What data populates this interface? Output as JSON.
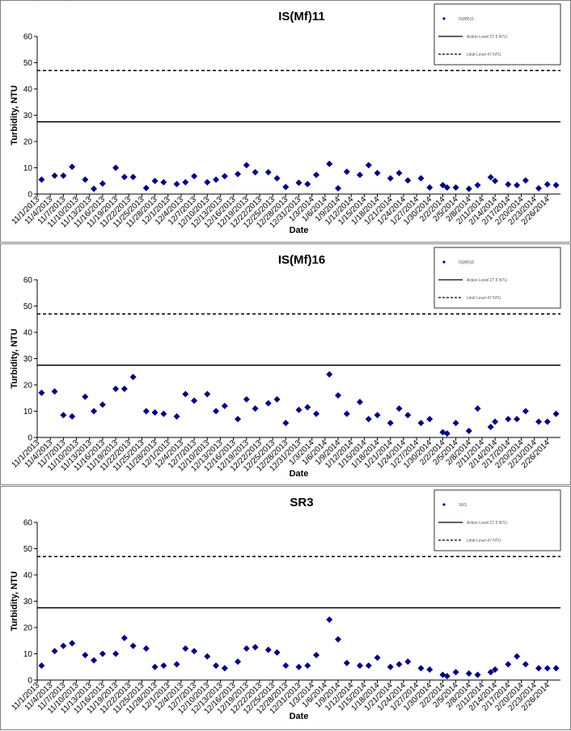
{
  "chart_data": [
    {
      "type": "scatter",
      "title": "IS(Mf)11",
      "x_label": "Date",
      "y_label": "Turbidity, NTU",
      "xlim": [
        "11/1/2013",
        "3/1/2014"
      ],
      "xticks": [
        "11/1/2013",
        "11/4/2013",
        "11/7/2013",
        "11/10/2013",
        "11/13/2013",
        "11/16/2013",
        "11/19/2013",
        "11/22/2013",
        "11/25/2013",
        "11/28/2013",
        "12/1/2013",
        "12/4/2013",
        "12/7/2013",
        "12/10/2013",
        "12/13/2013",
        "12/16/2013",
        "12/19/2013",
        "12/22/2013",
        "12/25/2013",
        "12/28/2013",
        "12/31/2013",
        "1/3/2014",
        "1/6/2014",
        "1/9/2014",
        "1/12/2014",
        "1/15/2014",
        "1/18/2014",
        "1/21/2014",
        "1/24/2014",
        "1/27/2014",
        "1/30/2014",
        "2/2/2014",
        "2/5/2014",
        "2/8/2014",
        "2/11/2014",
        "2/14/2014",
        "2/17/2014",
        "2/20/2014",
        "2/23/2014",
        "2/26/2014"
      ],
      "ylim": [
        0,
        60
      ],
      "yticks": [
        0,
        10,
        20,
        30,
        40,
        50,
        60
      ],
      "series": [
        {
          "name": "IS(Mf)11",
          "color": "#000080",
          "x": [
            "11/2/2013",
            "11/5/2013",
            "11/7/2013",
            "11/9/2013",
            "11/12/2013",
            "11/14/2013",
            "11/16/2013",
            "11/19/2013",
            "11/21/2013",
            "11/23/2013",
            "11/26/2013",
            "11/28/2013",
            "11/30/2013",
            "12/3/2013",
            "12/5/2013",
            "12/7/2013",
            "12/10/2013",
            "12/12/2013",
            "12/14/2013",
            "12/17/2013",
            "12/19/2013",
            "12/21/2013",
            "12/24/2013",
            "12/26/2013",
            "12/28/2013",
            "12/31/2013",
            "1/2/2014",
            "1/4/2014",
            "1/7/2014",
            "1/9/2014",
            "1/11/2014",
            "1/14/2014",
            "1/16/2014",
            "1/18/2014",
            "1/21/2014",
            "1/23/2014",
            "1/25/2014",
            "1/28/2014",
            "1/30/2014",
            "2/2/2014",
            "2/3/2014",
            "2/5/2014",
            "2/8/2014",
            "2/10/2014",
            "2/13/2014",
            "2/14/2014",
            "2/17/2014",
            "2/19/2014",
            "2/21/2014",
            "2/24/2014",
            "2/26/2014",
            "2/28/2014"
          ],
          "values": [
            5.5,
            7,
            7,
            10.4,
            5.5,
            2,
            4,
            10,
            6.5,
            6.5,
            2.3,
            5,
            4.5,
            3.8,
            4.5,
            6.8,
            4.5,
            5.5,
            6.8,
            7.6,
            11,
            8.3,
            8.3,
            6,
            2.7,
            4.3,
            3.8,
            7.3,
            11.5,
            2.2,
            8.5,
            7.3,
            11,
            8,
            6,
            8,
            5.2,
            6,
            2.5,
            3.4,
            2.5,
            2.5,
            2,
            3.4,
            6.4,
            5,
            3.7,
            3.4,
            5.2,
            2.2,
            3.7,
            3.4
          ]
        }
      ],
      "reference_lines": [
        {
          "name": "Action Level 27.5 NTU",
          "value": 27.5,
          "style": "solid",
          "color": "#000000"
        },
        {
          "name": "Limit Level 47 NTU",
          "value": 47,
          "style": "dashed",
          "color": "#000000"
        }
      ]
    },
    {
      "type": "scatter",
      "title": "IS(Mf)16",
      "x_label": "Date",
      "y_label": "Turbidity, NTU",
      "xlim": [
        "11/1/2013",
        "3/1/2014"
      ],
      "xticks": [
        "11/1/2013",
        "11/4/2013",
        "11/7/2013",
        "11/10/2013",
        "11/13/2013",
        "11/16/2013",
        "11/19/2013",
        "11/22/2013",
        "11/25/2013",
        "11/28/2013",
        "12/1/2013",
        "12/4/2013",
        "12/7/2013",
        "12/10/2013",
        "12/13/2013",
        "12/16/2013",
        "12/19/2013",
        "12/22/2013",
        "12/25/2013",
        "12/28/2013",
        "12/31/2013",
        "1/3/2014",
        "1/6/2014",
        "1/9/2014",
        "1/12/2014",
        "1/15/2014",
        "1/18/2014",
        "1/21/2014",
        "1/24/2014",
        "1/27/2014",
        "1/30/2014",
        "2/2/2014",
        "2/5/2014",
        "2/8/2014",
        "2/11/2014",
        "2/14/2014",
        "2/17/2014",
        "2/20/2014",
        "2/23/2014",
        "2/26/2014"
      ],
      "ylim": [
        0,
        60
      ],
      "yticks": [
        0,
        10,
        20,
        30,
        40,
        50,
        60
      ],
      "series": [
        {
          "name": "IS(Mf)16",
          "color": "#000080",
          "x": [
            "11/2/2013",
            "11/5/2013",
            "11/7/2013",
            "11/9/2013",
            "11/12/2013",
            "11/14/2013",
            "11/16/2013",
            "11/19/2013",
            "11/21/2013",
            "11/23/2013",
            "11/26/2013",
            "11/28/2013",
            "11/30/2013",
            "12/3/2013",
            "12/5/2013",
            "12/7/2013",
            "12/10/2013",
            "12/12/2013",
            "12/14/2013",
            "12/17/2013",
            "12/19/2013",
            "12/21/2013",
            "12/24/2013",
            "12/26/2013",
            "12/28/2013",
            "12/31/2013",
            "1/2/2014",
            "1/4/2014",
            "1/7/2014",
            "1/9/2014",
            "1/11/2014",
            "1/14/2014",
            "1/16/2014",
            "1/18/2014",
            "1/21/2014",
            "1/23/2014",
            "1/25/2014",
            "1/28/2014",
            "1/30/2014",
            "2/2/2014",
            "2/3/2014",
            "2/5/2014",
            "2/8/2014",
            "2/10/2014",
            "2/13/2014",
            "2/14/2014",
            "2/17/2014",
            "2/19/2014",
            "2/21/2014",
            "2/24/2014",
            "2/26/2014",
            "2/28/2014"
          ],
          "values": [
            17,
            17.5,
            8.5,
            8,
            15.5,
            10,
            12.5,
            18.5,
            18.5,
            23,
            10,
            9.5,
            9,
            8,
            16.5,
            14,
            16.5,
            10,
            12,
            7,
            14.5,
            11,
            13,
            14.5,
            5.5,
            10.5,
            11.5,
            9,
            24,
            16,
            9,
            13.5,
            7,
            8.5,
            5.5,
            11,
            8.5,
            5.5,
            7,
            2,
            1.5,
            5.5,
            2.5,
            11,
            4,
            6,
            7,
            7,
            10,
            6,
            6,
            9
          ]
        }
      ],
      "reference_lines": [
        {
          "name": "Action Level 27.5 NTU",
          "value": 27.5,
          "style": "solid",
          "color": "#000000"
        },
        {
          "name": "Limit Level 47 NTU",
          "value": 47,
          "style": "dashed",
          "color": "#000000"
        }
      ]
    },
    {
      "type": "scatter",
      "title": "SR3",
      "x_label": "Date",
      "y_label": "Turbidity, NTU",
      "xlim": [
        "11/1/2013",
        "3/1/2014"
      ],
      "xticks": [
        "11/1/2013",
        "11/4/2013",
        "11/7/2013",
        "11/10/2013",
        "11/13/2013",
        "11/16/2013",
        "11/19/2013",
        "11/22/2013",
        "11/25/2013",
        "11/28/2013",
        "12/1/2013",
        "12/4/2013",
        "12/7/2013",
        "12/10/2013",
        "12/13/2013",
        "12/16/2013",
        "12/19/2013",
        "12/22/2013",
        "12/25/2013",
        "12/28/2013",
        "12/31/2013",
        "1/3/2014",
        "1/6/2014",
        "1/9/2014",
        "1/12/2014",
        "1/15/2014",
        "1/18/2014",
        "1/21/2014",
        "1/24/2014",
        "1/27/2014",
        "1/30/2014",
        "2/2/2014",
        "2/5/2014",
        "2/8/2014",
        "2/11/2014",
        "2/14/2014",
        "2/17/2014",
        "2/20/2014",
        "2/23/2014",
        "2/26/2014"
      ],
      "ylim": [
        0,
        60
      ],
      "yticks": [
        0,
        10,
        20,
        30,
        40,
        50,
        60
      ],
      "series": [
        {
          "name": "SR3",
          "color": "#000080",
          "x": [
            "11/2/2013",
            "11/5/2013",
            "11/7/2013",
            "11/9/2013",
            "11/12/2013",
            "11/14/2013",
            "11/16/2013",
            "11/19/2013",
            "11/21/2013",
            "11/23/2013",
            "11/26/2013",
            "11/28/2013",
            "11/30/2013",
            "12/3/2013",
            "12/5/2013",
            "12/7/2013",
            "12/10/2013",
            "12/12/2013",
            "12/14/2013",
            "12/17/2013",
            "12/19/2013",
            "12/21/2013",
            "12/24/2013",
            "12/26/2013",
            "12/28/2013",
            "12/31/2013",
            "1/2/2014",
            "1/4/2014",
            "1/7/2014",
            "1/9/2014",
            "1/11/2014",
            "1/14/2014",
            "1/16/2014",
            "1/18/2014",
            "1/21/2014",
            "1/23/2014",
            "1/25/2014",
            "1/28/2014",
            "1/30/2014",
            "2/2/2014",
            "2/3/2014",
            "2/5/2014",
            "2/8/2014",
            "2/10/2014",
            "2/13/2014",
            "2/14/2014",
            "2/17/2014",
            "2/19/2014",
            "2/21/2014",
            "2/24/2014",
            "2/26/2014",
            "2/28/2014"
          ],
          "values": [
            5.5,
            11,
            13,
            14,
            9.5,
            7.5,
            10,
            10,
            16,
            13,
            12,
            5,
            5.5,
            6,
            12,
            11,
            9,
            5.5,
            4.5,
            7,
            12,
            12.5,
            11.5,
            10.5,
            5.5,
            5,
            5.5,
            9.5,
            23,
            15.5,
            6.5,
            5.5,
            5.5,
            8.5,
            5,
            6,
            7,
            4.5,
            4,
            2,
            1.5,
            3,
            2.5,
            2,
            3,
            4,
            6,
            9,
            6,
            4.5,
            4.5,
            4.5
          ]
        }
      ],
      "reference_lines": [
        {
          "name": "Action Level 27.5 NTU",
          "value": 27.5,
          "style": "solid",
          "color": "#000000"
        },
        {
          "name": "Limit Level 47 NTU",
          "value": 47,
          "style": "dashed",
          "color": "#000000"
        }
      ]
    }
  ]
}
